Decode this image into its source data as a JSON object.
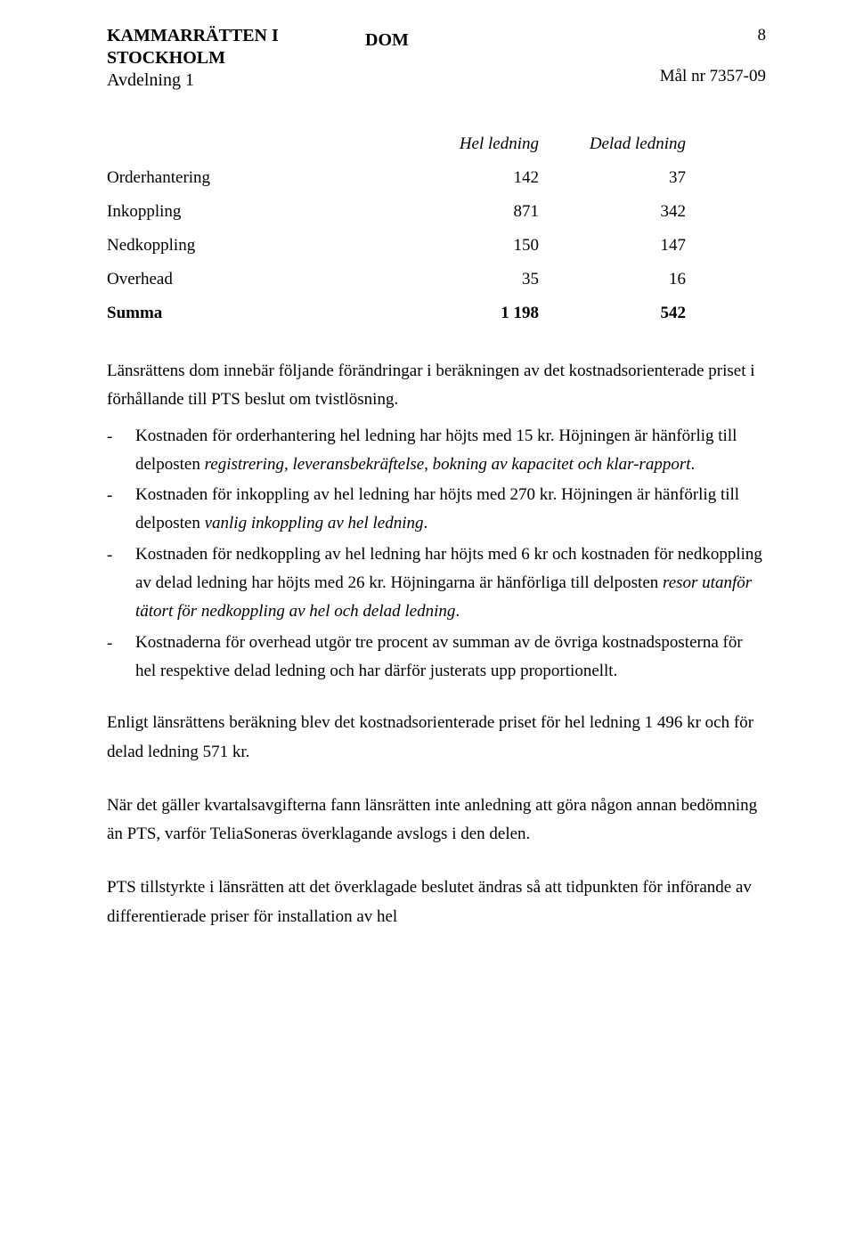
{
  "header": {
    "court_line1": "KAMMARRÄTTEN I",
    "court_line2": "STOCKHOLM",
    "department": "Avdelning 1",
    "doc_type": "DOM",
    "page_number": "8",
    "case_no": "Mål nr 7357-09"
  },
  "table": {
    "col1": "Hel ledning",
    "col2": "Delad ledning",
    "rows": [
      {
        "label": "Orderhantering",
        "v1": "142",
        "v2": "37"
      },
      {
        "label": "Inkoppling",
        "v1": "871",
        "v2": "342"
      },
      {
        "label": "Nedkoppling",
        "v1": "150",
        "v2": "147"
      },
      {
        "label": "Overhead",
        "v1": "35",
        "v2": "16"
      }
    ],
    "sum": {
      "label": "Summa",
      "v1": "1 198",
      "v2": "542"
    }
  },
  "para1": "Länsrättens dom innebär följande förändringar i beräkningen av det kostnadsorienterade priset i förhållande till PTS beslut om tvistlösning.",
  "bullets": [
    {
      "a": "Kostnaden för orderhantering hel ledning har höjts med 15 kr. Höjningen är hänförlig till delposten ",
      "i": "registrering, leveransbekräftelse, bokning av kapacitet och klar-rapport",
      "b": "."
    },
    {
      "a": "Kostnaden för inkoppling av hel ledning har höjts med 270 kr. Höjningen är hänförlig till delposten ",
      "i": "vanlig inkoppling av hel ledning",
      "b": "."
    },
    {
      "a": "Kostnaden för nedkoppling av hel ledning har höjts med 6 kr och kostnaden för nedkoppling av delad ledning har höjts med 26 kr. Höjningarna är hänförliga till delposten ",
      "i": "resor utanför tätort för nedkoppling av hel och delad ledning",
      "b": "."
    },
    {
      "a": "Kostnaderna för overhead utgör tre procent av summan av de övriga kostnadsposterna för hel respektive delad ledning och har därför justerats upp proportionellt.",
      "i": "",
      "b": ""
    }
  ],
  "para2": "Enligt länsrättens beräkning blev det kostnadsorienterade priset för hel ledning 1 496 kr och för delad ledning 571 kr.",
  "para3": "När det gäller kvartalsavgifterna fann länsrätten inte anledning att göra någon annan bedömning än PTS, varför TeliaSoneras överklagande avslogs i den delen.",
  "para4": "PTS tillstyrkte i länsrätten att det överklagade beslutet ändras så att tidpunkten för införande av differentierade priser för installation av hel"
}
